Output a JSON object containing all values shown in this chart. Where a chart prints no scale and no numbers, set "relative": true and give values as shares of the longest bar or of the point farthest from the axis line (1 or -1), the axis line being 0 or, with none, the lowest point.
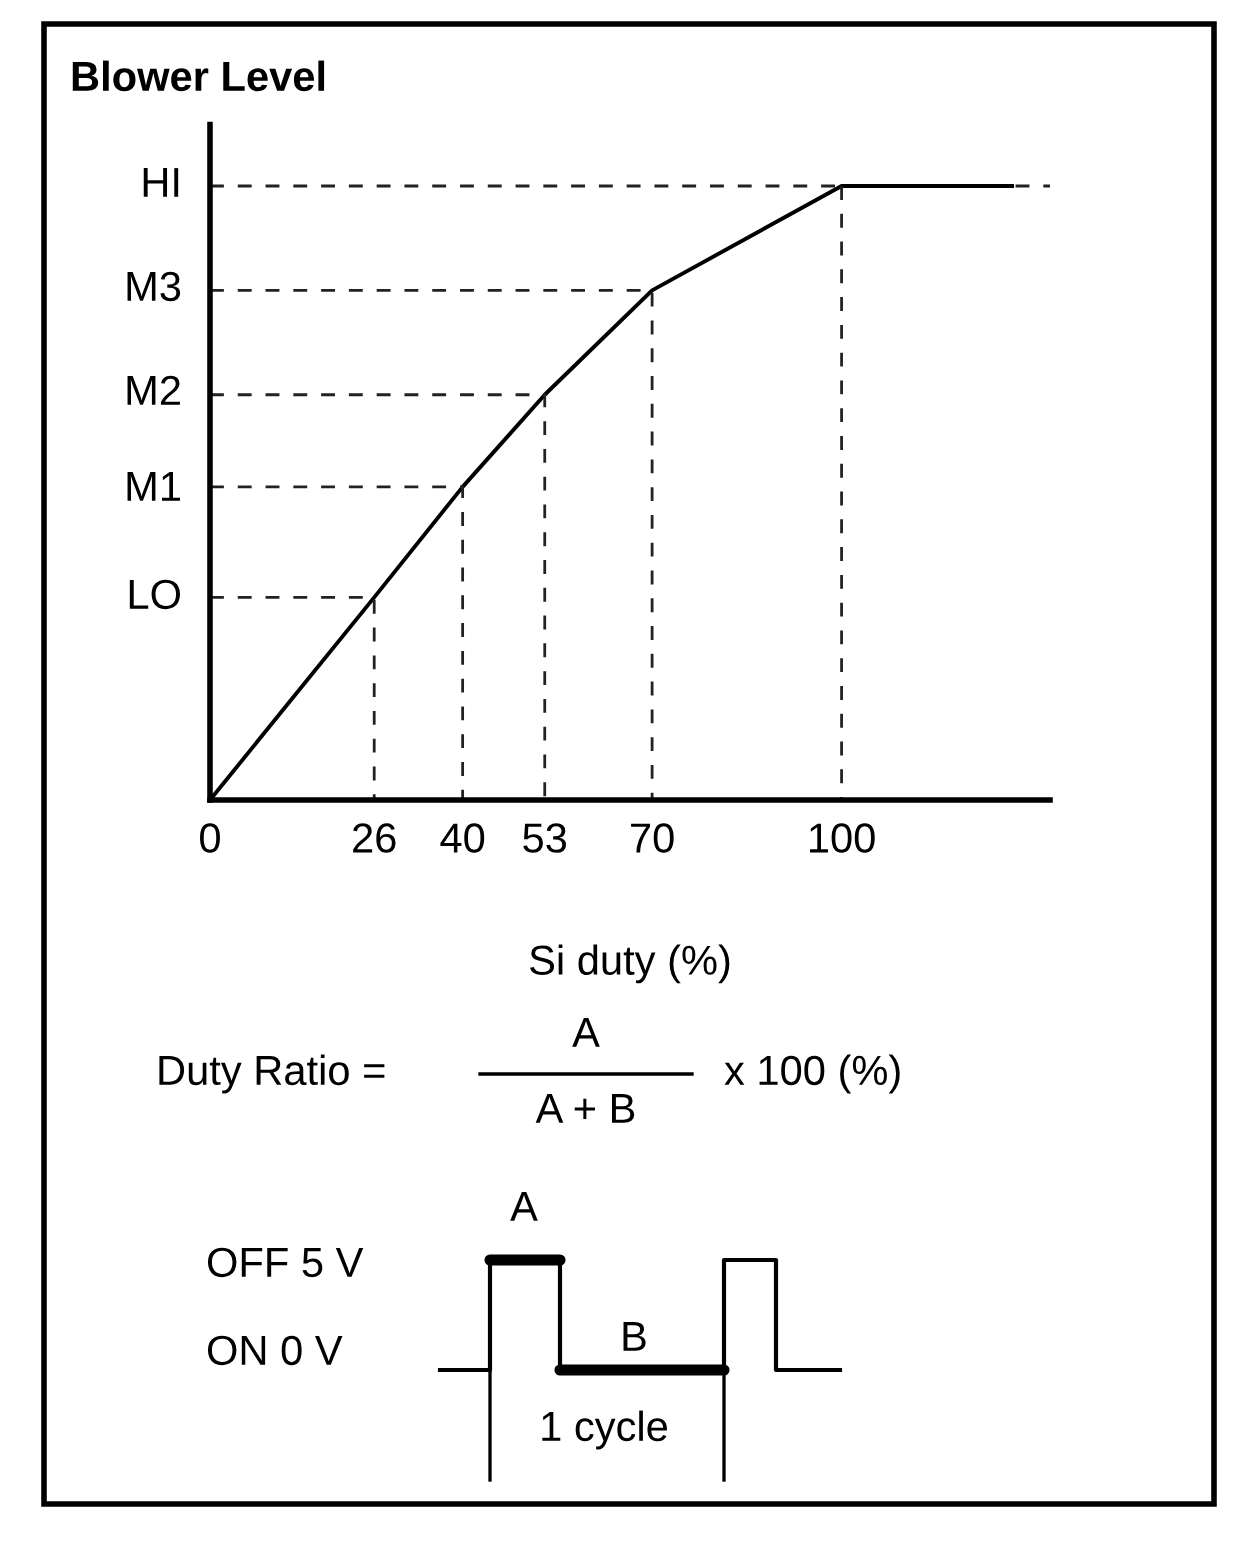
{
  "chart_data": {
    "type": "line",
    "title": "Blower Level",
    "xlabel": "Si duty (%)",
    "relative": true,
    "xlim": [
      0,
      133
    ],
    "xticks": [
      0,
      26,
      40,
      53,
      70,
      100
    ],
    "grid": false,
    "marker": "none",
    "series": [
      {
        "color": "#000000",
        "line_style": "solid",
        "x": [
          0,
          26,
          40,
          53,
          70,
          100,
          127
        ],
        "values": [
          0,
          0.33,
          0.51,
          0.66,
          0.83,
          1,
          1
        ]
      },
      {
        "color": "#222222",
        "line_style": "dashed",
        "x": [
          0,
          26,
          26
        ],
        "values": [
          0.33,
          0.33,
          0
        ]
      },
      {
        "color": "#222222",
        "line_style": "dashed",
        "x": [
          0,
          40,
          40
        ],
        "values": [
          0.51,
          0.51,
          0
        ]
      },
      {
        "color": "#222222",
        "line_style": "dashed",
        "x": [
          0,
          53,
          53
        ],
        "values": [
          0.66,
          0.66,
          0
        ]
      },
      {
        "color": "#222222",
        "line_style": "dashed",
        "x": [
          0,
          70,
          70
        ],
        "values": [
          0.83,
          0.83,
          0
        ]
      },
      {
        "color": "#222222",
        "line_style": "dashed",
        "x": [
          100,
          100,
          100
        ],
        "values": [
          1,
          0.5,
          0
        ]
      }
    ],
    "ref_lines": [
      {
        "axis": "y",
        "value": 1,
        "color": "#222222",
        "line_style": "dashed"
      }
    ],
    "annotations": [
      "LO",
      "M1",
      "M2",
      "M3",
      "HI",
      "Duty Ratio =",
      "A",
      "A + B",
      "x 100 (%)",
      "A",
      "OFF 5 V",
      "ON 0 V",
      "B",
      "1 cycle"
    ]
  }
}
